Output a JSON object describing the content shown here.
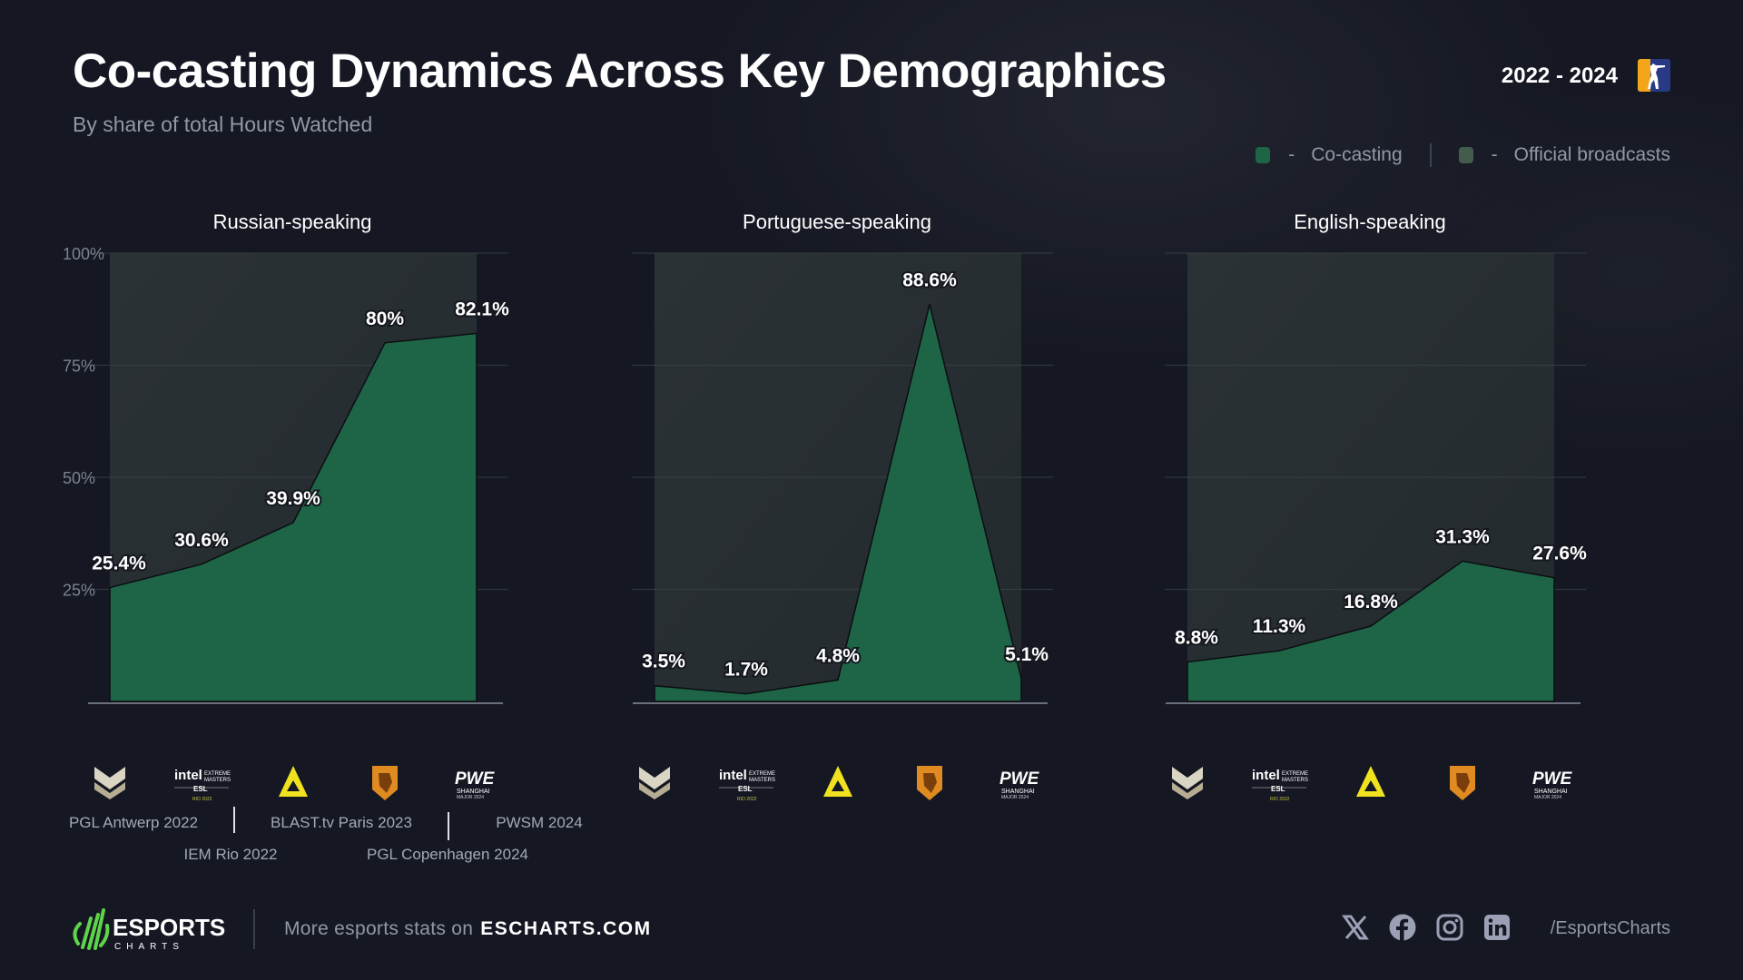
{
  "header": {
    "title": "Co-casting Dynamics Across Key Demographics",
    "subtitle": "By share of total Hours Watched",
    "years": "2022 - 2024",
    "game_icon": "counter-strike-icon"
  },
  "legend": {
    "items": [
      {
        "label": "Co-casting",
        "dash": "-",
        "color": "#1e6446"
      },
      {
        "label": "Official broadcasts",
        "dash": "-",
        "color": "#435c4e"
      }
    ]
  },
  "chart_data": [
    {
      "type": "area",
      "title": "Russian-speaking",
      "categories": [
        "PGL Antwerp 2022",
        "IEM Rio 2022",
        "BLAST.tv Paris 2023",
        "PGL Copenhagen 2024",
        "PWSM 2024"
      ],
      "series": [
        {
          "name": "Co-casting",
          "values": [
            25.4,
            30.6,
            39.9,
            80,
            82.1
          ]
        }
      ],
      "data_labels": [
        "25.4%",
        "30.6%",
        "39.9%",
        "80%",
        "82.1%"
      ],
      "ylim": [
        0,
        100
      ],
      "yticks": [
        "100%",
        "75%",
        "50%",
        "25%"
      ],
      "grid": true
    },
    {
      "type": "area",
      "title": "Portuguese-speaking",
      "categories": [
        "PGL Antwerp 2022",
        "IEM Rio 2022",
        "BLAST.tv Paris 2023",
        "PGL Copenhagen 2024",
        "PWSM 2024"
      ],
      "series": [
        {
          "name": "Co-casting",
          "values": [
            3.5,
            1.7,
            4.8,
            88.6,
            5.1
          ]
        }
      ],
      "data_labels": [
        "3.5%",
        "1.7%",
        "4.8%",
        "88.6%",
        "5.1%"
      ],
      "ylim": [
        0,
        100
      ],
      "grid": true
    },
    {
      "type": "area",
      "title": "English-speaking",
      "categories": [
        "PGL Antwerp 2022",
        "IEM Rio 2022",
        "BLAST.tv Paris 2023",
        "PGL Copenhagen 2024",
        "PWSM 2024"
      ],
      "series": [
        {
          "name": "Co-casting",
          "values": [
            8.8,
            11.3,
            16.8,
            31.3,
            27.6
          ]
        }
      ],
      "data_labels": [
        "8.8%",
        "11.3%",
        "16.8%",
        "31.3%",
        "27.6%"
      ],
      "ylim": [
        0,
        100
      ],
      "grid": true
    }
  ],
  "event_labels": [
    "PGL Antwerp 2022",
    "IEM Rio 2022",
    "BLAST.tv Paris 2023",
    "PGL Copenhagen 2024",
    "PWSM 2024"
  ],
  "event_icons": [
    "pgl-logo-icon",
    "iem-rio-logo-icon",
    "blast-logo-icon",
    "pgl-copenhagen-logo-icon",
    "pwsm-logo-icon"
  ],
  "footer": {
    "brand": "ESPORTS",
    "brand_sub": "CHARTS",
    "more_text": "More esports stats on",
    "site": "ESCHARTS.COM",
    "handle": "/EsportsCharts",
    "socials": [
      "x-icon",
      "facebook-icon",
      "instagram-icon",
      "linkedin-icon"
    ]
  }
}
